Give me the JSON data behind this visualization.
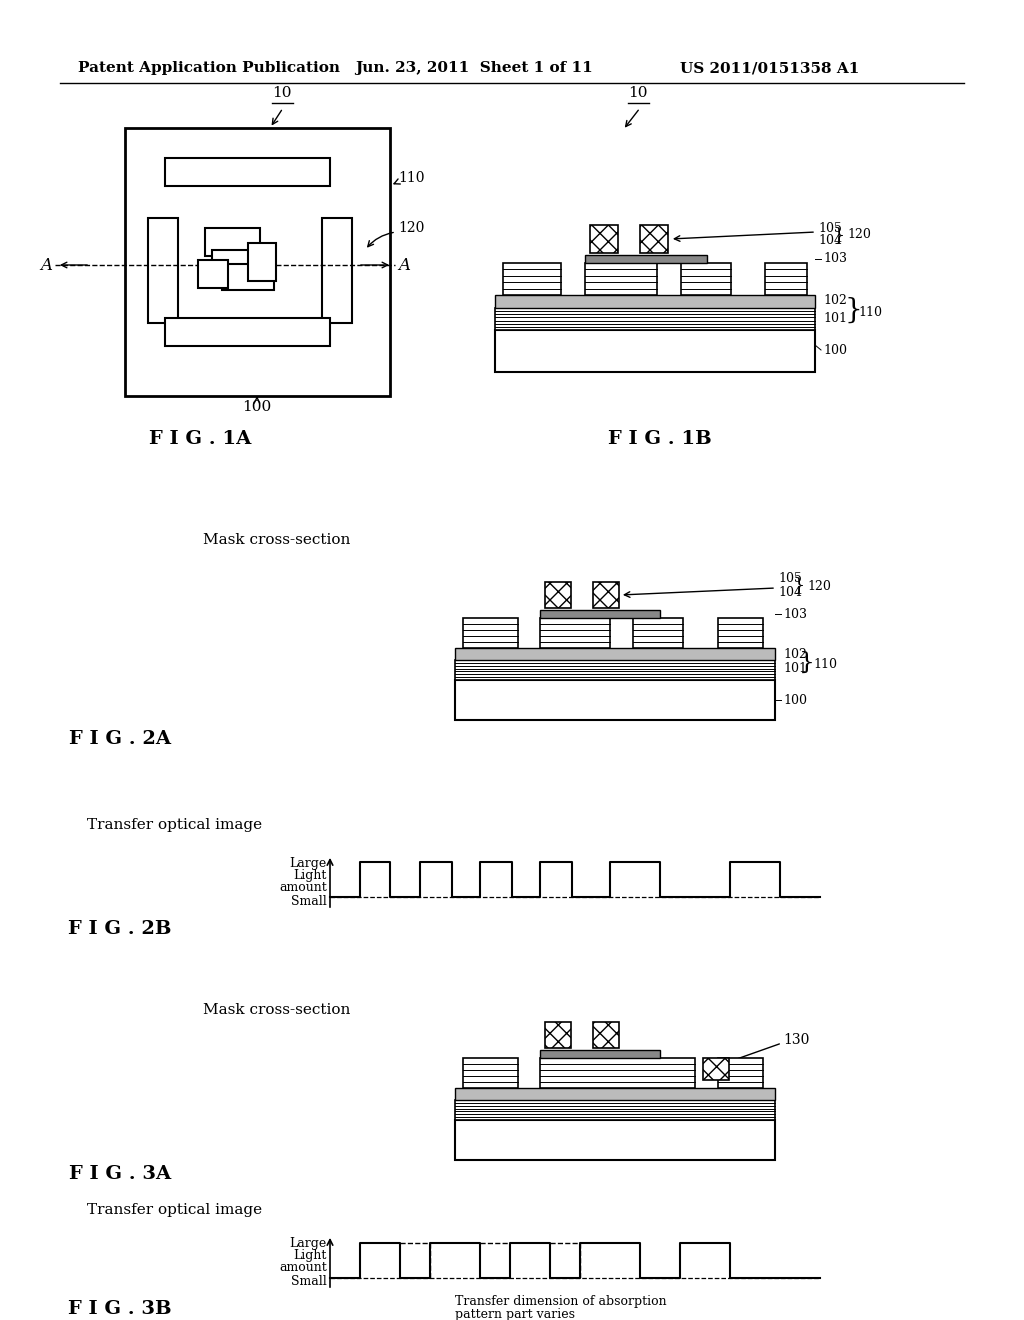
{
  "bg_color": "#ffffff",
  "header_text1": "Patent Application Publication",
  "header_text2": "Jun. 23, 2011  Sheet 1 of 11",
  "header_text3": "US 2011/0151358 A1",
  "fig1a_label": "F I G . 1A",
  "fig1b_label": "F I G . 1B",
  "fig2a_label": "F I G . 2A",
  "fig2b_label": "F I G . 2B",
  "fig3a_label": "F I G . 3A",
  "fig3b_label": "F I G . 3B"
}
